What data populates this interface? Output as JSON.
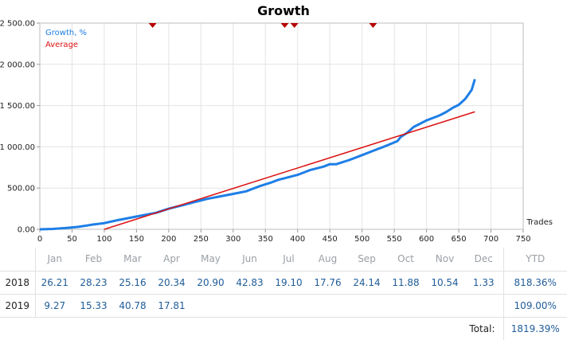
{
  "chart_data": {
    "type": "line",
    "title": "Growth",
    "xlabel": "Trades",
    "ylabel": "",
    "xlim": [
      0,
      750
    ],
    "ylim": [
      0,
      2500
    ],
    "x_ticks": [
      "0",
      "50",
      "100",
      "150",
      "200",
      "250",
      "300",
      "350",
      "400",
      "450",
      "500",
      "550",
      "600",
      "650",
      "700",
      "750"
    ],
    "y_ticks": [
      "0.00",
      "500.00",
      "1 000.00",
      "1 500.00",
      "2 000.00",
      "2 500.00"
    ],
    "grid": true,
    "legend_placement": "top-left",
    "series": [
      {
        "name": "Growth, %",
        "color": "#1e7ee6",
        "x": [
          0,
          20,
          40,
          60,
          80,
          100,
          120,
          140,
          160,
          180,
          200,
          220,
          240,
          260,
          280,
          300,
          310,
          320,
          340,
          360,
          370,
          380,
          400,
          420,
          440,
          450,
          460,
          480,
          500,
          520,
          540,
          555,
          560,
          570,
          580,
          590,
          600,
          610,
          620,
          630,
          640,
          650,
          660,
          670,
          675
        ],
        "y": [
          0,
          5,
          15,
          30,
          55,
          75,
          110,
          140,
          170,
          200,
          250,
          290,
          330,
          370,
          400,
          430,
          445,
          460,
          520,
          570,
          600,
          620,
          660,
          720,
          760,
          790,
          790,
          840,
          900,
          960,
          1020,
          1070,
          1120,
          1170,
          1240,
          1280,
          1320,
          1350,
          1380,
          1420,
          1470,
          1510,
          1580,
          1690,
          1820
        ]
      },
      {
        "name": "Average",
        "color": "#dd1111",
        "x": [
          100,
          675
        ],
        "y": [
          0,
          1425
        ]
      }
    ],
    "markers": {
      "color": "#b80000",
      "x": [
        175,
        380,
        395,
        517
      ]
    }
  },
  "table": {
    "months": [
      "Jan",
      "Feb",
      "Mar",
      "Apr",
      "May",
      "Jun",
      "Jul",
      "Aug",
      "Sep",
      "Oct",
      "Nov",
      "Dec"
    ],
    "ytd_label": "YTD",
    "rows": [
      {
        "year": "2018",
        "values": [
          "26.21",
          "28.23",
          "25.16",
          "20.34",
          "20.90",
          "42.83",
          "19.10",
          "17.76",
          "24.14",
          "11.88",
          "10.54",
          "1.33"
        ],
        "ytd": "818.36%"
      },
      {
        "year": "2019",
        "values": [
          "9.27",
          "15.33",
          "40.78",
          "17.81",
          "",
          "",
          "",
          "",
          "",
          "",
          "",
          ""
        ],
        "ytd": "109.00%"
      }
    ],
    "total_label": "Total:",
    "total_value": "1819.39%"
  }
}
